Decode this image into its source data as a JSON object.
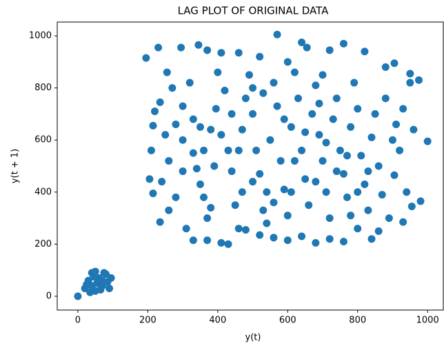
{
  "chart_data": {
    "type": "scatter",
    "title": "LAG PLOT OF ORIGINAL DATA",
    "x_label": "y(t)",
    "y_label": "y(t + 1)",
    "color": "#1f77b4",
    "xlim": [
      -59,
      1045
    ],
    "ylim": [
      -53,
      1053
    ],
    "xticks": [
      0,
      200,
      400,
      600,
      800,
      1000
    ],
    "yticks": [
      0,
      200,
      400,
      600,
      800,
      1000
    ],
    "x": [
      195,
      230,
      295,
      345,
      370,
      410,
      460,
      520,
      570,
      640,
      655,
      720,
      760,
      820,
      880,
      905,
      950,
      975,
      1000,
      980,
      955,
      930,
      905,
      860,
      840,
      800,
      780,
      760,
      720,
      680,
      640,
      600,
      560,
      520,
      480,
      430,
      410,
      370,
      330,
      310,
      260,
      235,
      215,
      205,
      210,
      215,
      220,
      235,
      255,
      270,
      280,
      300,
      300,
      320,
      330,
      340,
      350,
      360,
      370,
      380,
      395,
      400,
      420,
      430,
      440,
      450,
      460,
      470,
      480,
      490,
      500,
      510,
      520,
      530,
      540,
      550,
      560,
      570,
      580,
      590,
      600,
      610,
      620,
      630,
      640,
      650,
      660,
      670,
      680,
      690,
      700,
      710,
      720,
      730,
      740,
      750,
      760,
      770,
      780,
      790,
      800,
      810,
      820,
      830,
      840,
      850,
      860,
      870,
      880,
      890,
      900,
      910,
      920,
      930,
      940,
      950,
      960,
      300,
      280,
      260,
      250,
      240,
      330,
      360,
      390,
      410,
      440,
      470,
      500,
      530,
      560,
      590,
      620,
      650,
      680,
      710,
      740,
      770,
      800,
      830,
      690,
      610,
      540,
      460,
      380,
      350,
      600,
      500,
      700,
      0,
      20,
      30,
      40,
      50,
      60,
      70,
      80,
      90,
      35,
      55,
      75,
      45,
      85,
      25,
      65,
      95,
      50,
      40,
      70
    ],
    "y": [
      915,
      955,
      955,
      965,
      945,
      935,
      935,
      920,
      1005,
      975,
      955,
      945,
      970,
      940,
      880,
      895,
      855,
      830,
      595,
      365,
      345,
      285,
      465,
      250,
      220,
      260,
      310,
      210,
      220,
      205,
      230,
      215,
      225,
      235,
      255,
      200,
      205,
      215,
      215,
      260,
      330,
      285,
      395,
      450,
      560,
      655,
      710,
      745,
      860,
      800,
      660,
      600,
      730,
      820,
      550,
      490,
      430,
      380,
      300,
      640,
      720,
      860,
      790,
      560,
      480,
      350,
      260,
      640,
      760,
      850,
      700,
      560,
      470,
      330,
      280,
      600,
      820,
      730,
      520,
      410,
      310,
      650,
      860,
      760,
      560,
      450,
      350,
      700,
      810,
      620,
      520,
      400,
      300,
      680,
      760,
      560,
      470,
      380,
      650,
      820,
      720,
      540,
      430,
      330,
      610,
      700,
      500,
      390,
      760,
      300,
      600,
      660,
      560,
      720,
      400,
      820,
      640,
      480,
      380,
      520,
      620,
      440,
      680,
      560,
      500,
      620,
      700,
      400,
      440,
      780,
      360,
      680,
      520,
      630,
      440,
      590,
      480,
      540,
      400,
      480,
      740,
      400,
      400,
      560,
      340,
      650,
      900,
      800,
      850,
      0,
      30,
      60,
      90,
      20,
      70,
      40,
      85,
      30,
      15,
      50,
      90,
      75,
      55,
      45,
      25,
      70,
      95,
      40,
      60
    ]
  }
}
